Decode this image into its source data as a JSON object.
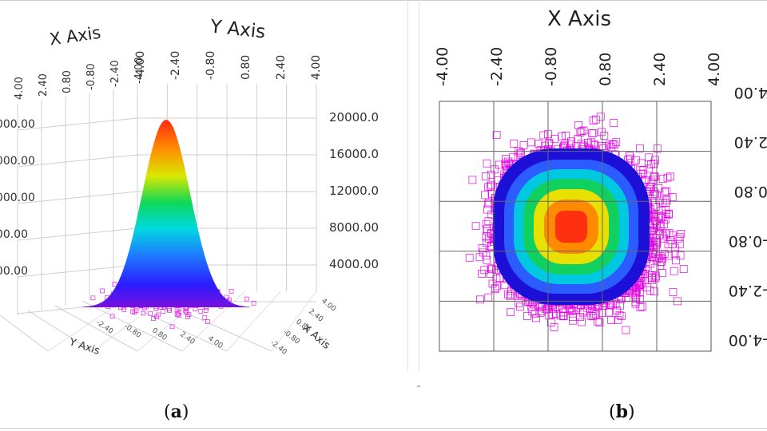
{
  "chart_data": [
    {
      "panel": "a",
      "type": "surface",
      "projection": "3d",
      "x_axis_label": "X Axis",
      "y_axis_label": "Y Axis",
      "z_axis_label": "",
      "x_ticks": [
        "4.00",
        "2.40",
        "0.80",
        "-0.80",
        "-2.40",
        "-4.00"
      ],
      "y_ticks": [
        "-4.00",
        "-2.40",
        "-0.80",
        "0.80",
        "2.40",
        "4.00"
      ],
      "z_ticks_right": [
        "20000.0",
        "16000.0",
        "12000.0",
        "8000.00",
        "4000.00"
      ],
      "z_ticks_left": [
        "0000.00",
        "6000.00",
        "2000.00",
        "000.00",
        "000.00"
      ],
      "bottom_y_label": "Y Axis",
      "bottom_y_ticks": [
        "-2.40",
        "-0.80",
        "0.80",
        "2.40",
        "4.00"
      ],
      "bottom_x_label": "X Axis",
      "bottom_x_ticks": [
        "4.00",
        "2.40",
        "0.80",
        "-0.80",
        "-2.40"
      ],
      "xlim": [
        -4,
        4
      ],
      "ylim": [
        -4,
        4
      ],
      "zlim": [
        0,
        20000
      ],
      "peak_value": 20000,
      "scatter_color": "#e000e0",
      "grid": true
    },
    {
      "panel": "b",
      "type": "heatmap",
      "projection": "top-view",
      "x_axis_label": "X Axis",
      "x_ticks": [
        "-4.00",
        "-2.40",
        "-0.80",
        "0.80",
        "2.40",
        "4.00"
      ],
      "y_ticks": [
        "4.00",
        "2.40",
        "0.80",
        "-0.80",
        "-2.40",
        "-4.00"
      ],
      "xlim": [
        -4,
        4
      ],
      "ylim": [
        -4,
        4
      ],
      "scatter_color": "#e000e0",
      "contour_colors": [
        "#1c10d8",
        "#2a5cff",
        "#00c8e0",
        "#10d060",
        "#e8e000",
        "#ff8a00",
        "#ff3010"
      ],
      "grid": true
    }
  ],
  "captions": {
    "a": "a",
    "b": "b"
  }
}
